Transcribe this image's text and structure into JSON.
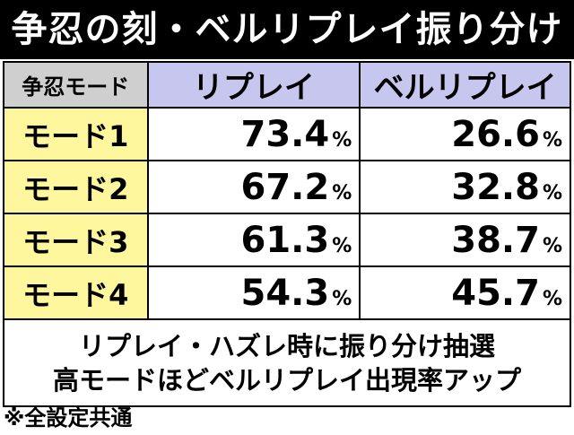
{
  "title": "争忍の刻・ベルリプレイ振り分け",
  "table": {
    "headers": [
      "争忍モード",
      "リプレイ",
      "ベルリプレイ"
    ],
    "rows": [
      {
        "mode": "モード1",
        "replay": "73.4",
        "bell_replay": "26.6"
      },
      {
        "mode": "モード2",
        "replay": "67.2",
        "bell_replay": "32.8"
      },
      {
        "mode": "モード3",
        "replay": "61.3",
        "bell_replay": "38.7"
      },
      {
        "mode": "モード4",
        "replay": "54.3",
        "bell_replay": "45.7"
      }
    ],
    "percent_sign": "%"
  },
  "note": {
    "line1": "リプレイ・ハズレ時に振り分け抽選",
    "line2": "高モードほどベルリプレイ出現率アップ"
  },
  "footnote": "※全設定共通",
  "colors": {
    "title_bg": "#000000",
    "header_mode_bg": "#cfcfcf",
    "header_col_bg": "#c7c6ee",
    "mode_bg": "#fff79e"
  }
}
